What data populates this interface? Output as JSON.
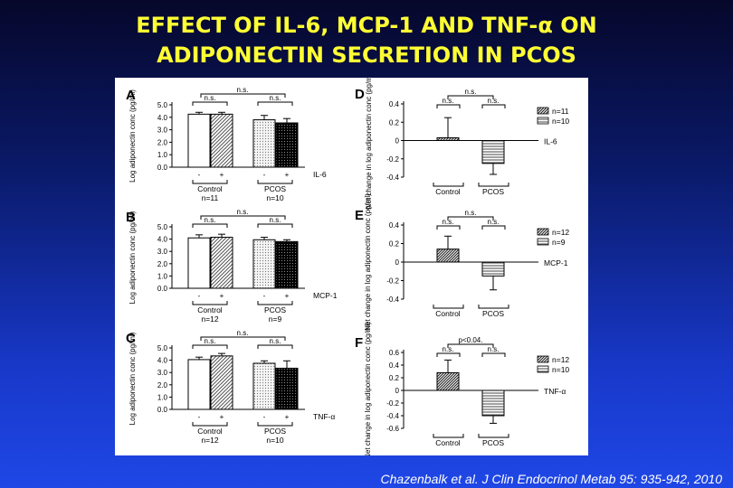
{
  "title_line1": "EFFECT OF IL-6, MCP-1 AND TNF-α ON",
  "title_line2": "ADIPONECTIN SECRETION IN PCOS",
  "citation": "Chazenbalk et al. J Clin Endocrinol Metab 95: 935-942, 2010",
  "colors": {
    "title": "#ffff33",
    "background": "#1a3ac0",
    "figure_bg": "#ffffff"
  },
  "chart_data": [
    {
      "panel": "A",
      "type": "bar",
      "ylabel": "Log adiponectin conc (pg/ml)",
      "ylim": [
        0,
        5
      ],
      "yticks": [
        "5.0",
        "4.0",
        "3.0",
        "2.0",
        "1.0",
        "0.0"
      ],
      "categories": [
        "Control -",
        "Control +",
        "PCOS -",
        "PCOS +"
      ],
      "values": [
        4.25,
        4.25,
        3.8,
        3.55
      ],
      "errors": [
        0.15,
        0.15,
        0.35,
        0.35
      ],
      "signs": [
        "-",
        "+",
        "-",
        "+"
      ],
      "treatment": "IL-6",
      "groups": [
        "Control",
        "PCOS"
      ],
      "n_labels": [
        "n=11",
        "n=10"
      ],
      "annotations": [
        "n.s.",
        "n.s.",
        "n.s."
      ]
    },
    {
      "panel": "B",
      "type": "bar",
      "ylabel": "Log adiponectin conc (pg/ml)",
      "ylim": [
        0,
        5
      ],
      "yticks": [
        "5.0",
        "4.0",
        "3.0",
        "2.0",
        "1.0",
        "0.0"
      ],
      "categories": [
        "Control -",
        "Control +",
        "PCOS -",
        "PCOS +"
      ],
      "values": [
        4.1,
        4.15,
        3.95,
        3.8
      ],
      "errors": [
        0.25,
        0.25,
        0.2,
        0.15
      ],
      "signs": [
        "-",
        "+",
        "-",
        "+"
      ],
      "treatment": "MCP-1",
      "groups": [
        "Control",
        "PCOS"
      ],
      "n_labels": [
        "n=12",
        "n=9"
      ],
      "annotations": [
        "n.s.",
        "n.s.",
        "n.s."
      ]
    },
    {
      "panel": "C",
      "type": "bar",
      "ylabel": "Log adiponectin conc (pg/ml)",
      "ylim": [
        0,
        5
      ],
      "yticks": [
        "5.0",
        "4.0",
        "3.0",
        "2.0",
        "1.0",
        "0.0"
      ],
      "categories": [
        "Control -",
        "Control +",
        "PCOS -",
        "PCOS +"
      ],
      "values": [
        4.05,
        4.35,
        3.75,
        3.35
      ],
      "errors": [
        0.2,
        0.2,
        0.2,
        0.6
      ],
      "signs": [
        "-",
        "+",
        "-",
        "+"
      ],
      "treatment": "TNF-α",
      "groups": [
        "Control",
        "PCOS"
      ],
      "n_labels": [
        "n=12",
        "n=10"
      ],
      "annotations": [
        "n.s.",
        "n.s.",
        "n.s."
      ]
    },
    {
      "panel": "D",
      "type": "bar",
      "ylabel": "Net change in log adiponectin conc (pg/ml)",
      "ylim": [
        -0.4,
        0.4
      ],
      "yticks": [
        "0.4",
        "0.2",
        "0",
        "-0.2",
        "-0.4"
      ],
      "categories": [
        "Control",
        "PCOS"
      ],
      "values": [
        0.03,
        -0.25
      ],
      "errors": [
        0.22,
        0.12
      ],
      "treatment": "IL-6",
      "legend": [
        "n=11",
        "n=10"
      ],
      "annotations": [
        "n.s.",
        "n.s.",
        "n.s."
      ]
    },
    {
      "panel": "E",
      "type": "bar",
      "ylabel": "Net change in log adiponectin conc (pg/ml)",
      "ylim": [
        -0.4,
        0.4
      ],
      "yticks": [
        "0.4",
        "0.2",
        "0",
        "-0.2",
        "-0.4"
      ],
      "categories": [
        "Control",
        "PCOS"
      ],
      "values": [
        0.14,
        -0.15
      ],
      "errors": [
        0.14,
        0.15
      ],
      "treatment": "MCP-1",
      "legend": [
        "n=12",
        "n=9"
      ],
      "annotations": [
        "n.s.",
        "n.s.",
        "n.s."
      ]
    },
    {
      "panel": "F",
      "type": "bar",
      "ylabel": "Net change in log adiponectin conc (pg/ml)",
      "ylim": [
        -0.6,
        0.6
      ],
      "yticks": [
        "0.6",
        "0.4",
        "0.2",
        "0",
        "-0.2",
        "-0.4",
        "-0.6"
      ],
      "categories": [
        "Control",
        "PCOS"
      ],
      "values": [
        0.28,
        -0.4
      ],
      "errors": [
        0.2,
        0.12
      ],
      "treatment": "TNF-α",
      "legend": [
        "n=12",
        "n=10"
      ],
      "annotations": [
        "n.s.",
        "n.s.",
        "p<0.04."
      ]
    }
  ]
}
